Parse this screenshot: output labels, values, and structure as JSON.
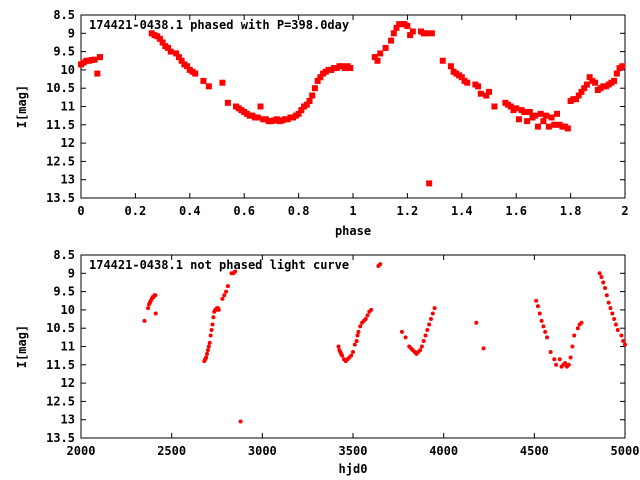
{
  "chart_data": [
    {
      "type": "scatter",
      "title": "174421-0438.1 phased with P=398.0day",
      "xlabel": "phase",
      "ylabel": "I[mag]",
      "xlim": [
        0,
        2
      ],
      "ylim": [
        8.5,
        13.5
      ],
      "y_inverted": true,
      "x_ticks": [
        "0",
        "0.2",
        "0.4",
        "0.6",
        "0.8",
        "1",
        "1.2",
        "1.4",
        "1.6",
        "1.8",
        "2"
      ],
      "y_ticks": [
        "8.5",
        "9",
        "9.5",
        "10",
        "10.5",
        "11",
        "11.5",
        "12",
        "12.5",
        "13",
        "13.5"
      ],
      "marker_color": "#ff0000",
      "marker": "plus-filled",
      "grid": false,
      "series": [
        {
          "name": "",
          "points": [
            [
              0.0,
              9.85
            ],
            [
              0.01,
              9.8
            ],
            [
              0.02,
              9.75
            ],
            [
              0.03,
              9.75
            ],
            [
              0.04,
              9.73
            ],
            [
              0.05,
              9.72
            ],
            [
              0.06,
              10.1
            ],
            [
              0.07,
              9.65
            ],
            [
              0.26,
              9.0
            ],
            [
              0.27,
              9.05
            ],
            [
              0.28,
              9.08
            ],
            [
              0.29,
              9.15
            ],
            [
              0.3,
              9.25
            ],
            [
              0.31,
              9.35
            ],
            [
              0.32,
              9.4
            ],
            [
              0.33,
              9.5
            ],
            [
              0.35,
              9.55
            ],
            [
              0.36,
              9.65
            ],
            [
              0.37,
              9.75
            ],
            [
              0.38,
              9.85
            ],
            [
              0.39,
              9.9
            ],
            [
              0.4,
              10.0
            ],
            [
              0.41,
              10.05
            ],
            [
              0.42,
              10.1
            ],
            [
              0.45,
              10.3
            ],
            [
              0.47,
              10.45
            ],
            [
              0.52,
              10.35
            ],
            [
              0.54,
              10.9
            ],
            [
              0.57,
              11.0
            ],
            [
              0.58,
              11.05
            ],
            [
              0.59,
              11.1
            ],
            [
              0.6,
              11.15
            ],
            [
              0.61,
              11.2
            ],
            [
              0.62,
              11.25
            ],
            [
              0.63,
              11.25
            ],
            [
              0.64,
              11.3
            ],
            [
              0.65,
              11.3
            ],
            [
              0.66,
              11.0
            ],
            [
              0.67,
              11.35
            ],
            [
              0.68,
              11.35
            ],
            [
              0.69,
              11.4
            ],
            [
              0.7,
              11.4
            ],
            [
              0.71,
              11.38
            ],
            [
              0.72,
              11.35
            ],
            [
              0.73,
              11.4
            ],
            [
              0.74,
              11.38
            ],
            [
              0.75,
              11.35
            ],
            [
              0.76,
              11.35
            ],
            [
              0.77,
              11.3
            ],
            [
              0.78,
              11.3
            ],
            [
              0.79,
              11.25
            ],
            [
              0.8,
              11.2
            ],
            [
              0.81,
              11.1
            ],
            [
              0.82,
              11.0
            ],
            [
              0.83,
              10.95
            ],
            [
              0.84,
              10.85
            ],
            [
              0.85,
              10.7
            ],
            [
              0.86,
              10.5
            ],
            [
              0.87,
              10.3
            ],
            [
              0.88,
              10.2
            ],
            [
              0.89,
              10.1
            ],
            [
              0.9,
              10.05
            ],
            [
              0.91,
              10.0
            ],
            [
              0.92,
              10.0
            ],
            [
              0.93,
              9.95
            ],
            [
              0.94,
              9.95
            ],
            [
              0.95,
              9.9
            ],
            [
              0.96,
              9.9
            ],
            [
              0.97,
              9.95
            ],
            [
              0.98,
              9.9
            ],
            [
              0.99,
              9.95
            ],
            [
              1.08,
              9.65
            ],
            [
              1.09,
              9.75
            ],
            [
              1.1,
              9.55
            ],
            [
              1.12,
              9.4
            ],
            [
              1.14,
              9.2
            ],
            [
              1.15,
              9.0
            ],
            [
              1.16,
              8.85
            ],
            [
              1.17,
              8.75
            ],
            [
              1.18,
              8.75
            ],
            [
              1.19,
              8.75
            ],
            [
              1.2,
              8.8
            ],
            [
              1.21,
              9.05
            ],
            [
              1.22,
              8.95
            ],
            [
              1.25,
              8.95
            ],
            [
              1.26,
              9.0
            ],
            [
              1.27,
              9.0
            ],
            [
              1.28,
              13.1
            ],
            [
              1.29,
              9.0
            ],
            [
              1.33,
              9.75
            ],
            [
              1.36,
              9.9
            ],
            [
              1.37,
              10.05
            ],
            [
              1.38,
              10.1
            ],
            [
              1.39,
              10.15
            ],
            [
              1.4,
              10.2
            ],
            [
              1.41,
              10.3
            ],
            [
              1.42,
              10.35
            ],
            [
              1.45,
              10.4
            ],
            [
              1.46,
              10.45
            ],
            [
              1.47,
              10.65
            ],
            [
              1.49,
              10.7
            ],
            [
              1.5,
              10.6
            ],
            [
              1.52,
              11.0
            ],
            [
              1.56,
              10.9
            ],
            [
              1.57,
              10.95
            ],
            [
              1.58,
              11.0
            ],
            [
              1.59,
              11.1
            ],
            [
              1.6,
              11.05
            ],
            [
              1.61,
              11.35
            ],
            [
              1.62,
              11.1
            ],
            [
              1.63,
              11.15
            ],
            [
              1.64,
              11.4
            ],
            [
              1.65,
              11.15
            ],
            [
              1.66,
              11.3
            ],
            [
              1.67,
              11.25
            ],
            [
              1.68,
              11.55
            ],
            [
              1.69,
              11.2
            ],
            [
              1.7,
              11.4
            ],
            [
              1.71,
              11.25
            ],
            [
              1.72,
              11.55
            ],
            [
              1.73,
              11.3
            ],
            [
              1.74,
              11.5
            ],
            [
              1.75,
              11.2
            ],
            [
              1.76,
              11.5
            ],
            [
              1.77,
              11.55
            ],
            [
              1.78,
              11.55
            ],
            [
              1.79,
              11.6
            ],
            [
              1.8,
              10.85
            ],
            [
              1.81,
              10.8
            ],
            [
              1.82,
              10.8
            ],
            [
              1.83,
              10.7
            ],
            [
              1.84,
              10.6
            ],
            [
              1.85,
              10.5
            ],
            [
              1.86,
              10.4
            ],
            [
              1.87,
              10.2
            ],
            [
              1.88,
              10.3
            ],
            [
              1.89,
              10.35
            ],
            [
              1.9,
              10.55
            ],
            [
              1.91,
              10.5
            ],
            [
              1.92,
              10.45
            ],
            [
              1.93,
              10.45
            ],
            [
              1.94,
              10.4
            ],
            [
              1.95,
              10.35
            ],
            [
              1.96,
              10.3
            ],
            [
              1.97,
              10.1
            ],
            [
              1.98,
              9.95
            ],
            [
              1.99,
              9.9
            ]
          ]
        }
      ]
    },
    {
      "type": "scatter",
      "title": "174421-0438.1 not phased light curve",
      "xlabel": "hjd0",
      "ylabel": "I[mag]",
      "xlim": [
        2000,
        5000
      ],
      "ylim": [
        8.5,
        13.5
      ],
      "y_inverted": true,
      "x_ticks": [
        "2000",
        "2500",
        "3000",
        "3500",
        "4000",
        "4500",
        "5000"
      ],
      "y_ticks": [
        "8.5",
        "9",
        "9.5",
        "10",
        "10.5",
        "11",
        "11.5",
        "12",
        "12.5",
        "13",
        "13.5"
      ],
      "marker_color": "#ff0000",
      "marker": "dot",
      "grid": false,
      "series": [
        {
          "name": "",
          "points": [
            [
              2350,
              10.3
            ],
            [
              2370,
              9.95
            ],
            [
              2375,
              9.85
            ],
            [
              2380,
              9.8
            ],
            [
              2385,
              9.75
            ],
            [
              2390,
              9.7
            ],
            [
              2395,
              9.65
            ],
            [
              2400,
              9.65
            ],
            [
              2405,
              9.6
            ],
            [
              2410,
              9.6
            ],
            [
              2412,
              10.1
            ],
            [
              2680,
              11.4
            ],
            [
              2685,
              11.35
            ],
            [
              2690,
              11.3
            ],
            [
              2695,
              11.2
            ],
            [
              2700,
              11.1
            ],
            [
              2705,
              11.0
            ],
            [
              2710,
              10.9
            ],
            [
              2715,
              10.7
            ],
            [
              2720,
              10.55
            ],
            [
              2725,
              10.4
            ],
            [
              2730,
              10.2
            ],
            [
              2735,
              10.05
            ],
            [
              2740,
              10.0
            ],
            [
              2745,
              10.0
            ],
            [
              2750,
              9.95
            ],
            [
              2755,
              9.95
            ],
            [
              2760,
              10.0
            ],
            [
              2780,
              9.7
            ],
            [
              2790,
              9.6
            ],
            [
              2800,
              9.5
            ],
            [
              2810,
              9.35
            ],
            [
              2830,
              9.0
            ],
            [
              2840,
              9.0
            ],
            [
              2850,
              8.95
            ],
            [
              2880,
              13.05
            ],
            [
              3420,
              11.0
            ],
            [
              3425,
              11.1
            ],
            [
              3430,
              11.15
            ],
            [
              3435,
              11.2
            ],
            [
              3440,
              11.25
            ],
            [
              3450,
              11.35
            ],
            [
              3460,
              11.4
            ],
            [
              3470,
              11.35
            ],
            [
              3480,
              11.3
            ],
            [
              3490,
              11.25
            ],
            [
              3500,
              11.15
            ],
            [
              3510,
              10.95
            ],
            [
              3520,
              10.85
            ],
            [
              3525,
              10.7
            ],
            [
              3530,
              10.6
            ],
            [
              3540,
              10.45
            ],
            [
              3550,
              10.35
            ],
            [
              3560,
              10.3
            ],
            [
              3570,
              10.25
            ],
            [
              3580,
              10.15
            ],
            [
              3590,
              10.05
            ],
            [
              3600,
              10.0
            ],
            [
              3640,
              8.8
            ],
            [
              3650,
              8.75
            ],
            [
              3770,
              10.6
            ],
            [
              3790,
              10.75
            ],
            [
              3810,
              11.0
            ],
            [
              3820,
              11.05
            ],
            [
              3830,
              11.1
            ],
            [
              3840,
              11.15
            ],
            [
              3850,
              11.2
            ],
            [
              3860,
              11.15
            ],
            [
              3870,
              11.1
            ],
            [
              3880,
              11.0
            ],
            [
              3890,
              10.85
            ],
            [
              3900,
              10.7
            ],
            [
              3910,
              10.55
            ],
            [
              3920,
              10.4
            ],
            [
              3930,
              10.25
            ],
            [
              3940,
              10.1
            ],
            [
              3950,
              9.95
            ],
            [
              4180,
              10.35
            ],
            [
              4220,
              11.05
            ],
            [
              4510,
              9.75
            ],
            [
              4520,
              9.9
            ],
            [
              4530,
              10.1
            ],
            [
              4540,
              10.3
            ],
            [
              4550,
              10.45
            ],
            [
              4560,
              10.6
            ],
            [
              4570,
              10.75
            ],
            [
              4590,
              11.15
            ],
            [
              4610,
              11.35
            ],
            [
              4620,
              11.5
            ],
            [
              4640,
              11.35
            ],
            [
              4650,
              11.55
            ],
            [
              4660,
              11.5
            ],
            [
              4670,
              11.45
            ],
            [
              4680,
              11.55
            ],
            [
              4690,
              11.5
            ],
            [
              4700,
              11.3
            ],
            [
              4710,
              11.0
            ],
            [
              4720,
              10.7
            ],
            [
              4740,
              10.5
            ],
            [
              4750,
              10.4
            ],
            [
              4760,
              10.35
            ],
            [
              4860,
              9.0
            ],
            [
              4870,
              9.1
            ],
            [
              4880,
              9.25
            ],
            [
              4890,
              9.4
            ],
            [
              4900,
              9.6
            ],
            [
              4910,
              9.8
            ],
            [
              4920,
              9.95
            ],
            [
              4930,
              10.1
            ],
            [
              4940,
              10.25
            ],
            [
              4950,
              10.4
            ],
            [
              4960,
              10.55
            ],
            [
              4980,
              10.7
            ],
            [
              4990,
              10.85
            ],
            [
              5000,
              10.95
            ]
          ]
        }
      ]
    }
  ]
}
